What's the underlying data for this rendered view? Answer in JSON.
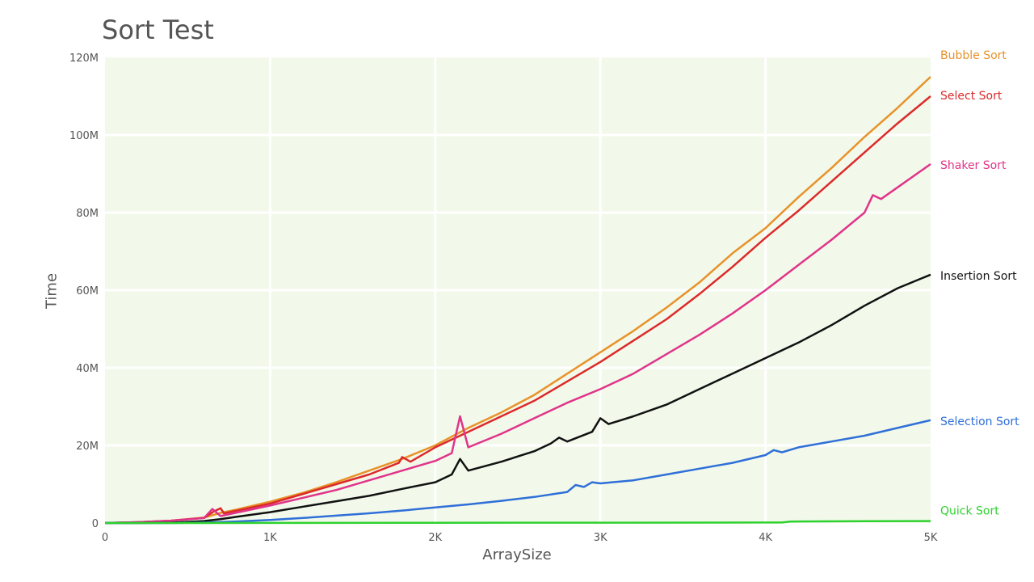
{
  "chart_data": {
    "type": "line",
    "title": "Sort Test",
    "xlabel": "ArraySize",
    "ylabel": "Time",
    "xlim": [
      0,
      5000
    ],
    "ylim": [
      0,
      120000000
    ],
    "xticks": [
      0,
      1000,
      2000,
      3000,
      4000,
      5000
    ],
    "xtick_labels": [
      "0",
      "1K",
      "2K",
      "3K",
      "4K",
      "5K"
    ],
    "yticks": [
      0,
      20000000,
      40000000,
      60000000,
      80000000,
      100000000,
      120000000
    ],
    "ytick_labels": [
      "0",
      "20M",
      "40M",
      "60M",
      "80M",
      "100M",
      "120M"
    ],
    "grid": true,
    "legend": "right",
    "plot_background": "#f2f9ea",
    "series": [
      {
        "name": "Bubble Sort",
        "color": "#e8922a",
        "x": [
          0,
          200,
          400,
          600,
          700,
          800,
          1000,
          1200,
          1400,
          1600,
          1800,
          2000,
          2200,
          2400,
          2600,
          2800,
          3000,
          3200,
          3400,
          3600,
          3800,
          4000,
          4200,
          4400,
          4600,
          4800,
          5000
        ],
        "y": [
          0,
          200000,
          600000,
          1400000,
          2600000,
          3500000,
          5500000,
          7800000,
          10500000,
          13500000,
          16500000,
          20000000,
          24500000,
          28500000,
          33000000,
          38500000,
          44000000,
          49500000,
          55500000,
          62000000,
          69500000,
          76000000,
          84000000,
          91500000,
          99500000,
          107000000,
          115000000
        ]
      },
      {
        "name": "Select Sort",
        "color": "#dc2a2a",
        "x": [
          0,
          200,
          400,
          600,
          660,
          700,
          720,
          800,
          1000,
          1200,
          1400,
          1600,
          1780,
          1800,
          1850,
          2000,
          2200,
          2400,
          2600,
          2800,
          3000,
          3200,
          3400,
          3600,
          3800,
          4000,
          4200,
          4400,
          4600,
          4800,
          5000
        ],
        "y": [
          0,
          200000,
          600000,
          1300000,
          3000000,
          3800000,
          2500000,
          3200000,
          5000000,
          7500000,
          10000000,
          12500000,
          15500000,
          17000000,
          15800000,
          19500000,
          23500000,
          27500000,
          31500000,
          36500000,
          41500000,
          47000000,
          52500000,
          59000000,
          66000000,
          73500000,
          80500000,
          88000000,
          95500000,
          103000000,
          110000000
        ]
      },
      {
        "name": "Shaker Sort",
        "color": "#e0348a",
        "x": [
          0,
          200,
          400,
          600,
          650,
          700,
          1000,
          1200,
          1400,
          1600,
          1800,
          2000,
          2100,
          2150,
          2200,
          2400,
          2600,
          2800,
          3000,
          3200,
          3400,
          3600,
          3800,
          4000,
          4200,
          4400,
          4600,
          4650,
          4700,
          4800,
          5000
        ],
        "y": [
          0,
          200000,
          600000,
          1300000,
          3600000,
          1800000,
          4500000,
          6500000,
          8500000,
          11000000,
          13500000,
          16000000,
          18000000,
          27500000,
          19500000,
          23000000,
          27000000,
          31000000,
          34500000,
          38500000,
          43500000,
          48500000,
          54000000,
          60000000,
          66500000,
          73000000,
          80000000,
          84500000,
          83500000,
          86500000,
          92500000
        ]
      },
      {
        "name": "Insertion Sort",
        "color": "#111111",
        "x": [
          0,
          200,
          400,
          600,
          700,
          800,
          1000,
          1200,
          1400,
          1600,
          1800,
          2000,
          2100,
          2150,
          2200,
          2400,
          2600,
          2700,
          2750,
          2800,
          2950,
          3000,
          3050,
          3200,
          3400,
          3600,
          3800,
          4000,
          4200,
          4400,
          4600,
          4800,
          5000
        ],
        "y": [
          0,
          0,
          100000,
          500000,
          1000000,
          1600000,
          2800000,
          4200000,
          5600000,
          7000000,
          8800000,
          10500000,
          12500000,
          16500000,
          13500000,
          15800000,
          18500000,
          20500000,
          22000000,
          21000000,
          23500000,
          27000000,
          25500000,
          27500000,
          30500000,
          34500000,
          38500000,
          42500000,
          46500000,
          51000000,
          56000000,
          60500000,
          64000000
        ]
      },
      {
        "name": "Selection Sort",
        "color": "#2f6fd8",
        "x": [
          0,
          400,
          600,
          800,
          1000,
          1200,
          1400,
          1600,
          1800,
          2000,
          2200,
          2400,
          2600,
          2800,
          2850,
          2900,
          2950,
          3000,
          3200,
          3400,
          3600,
          3800,
          4000,
          4050,
          4100,
          4200,
          4400,
          4600,
          4800,
          5000
        ],
        "y": [
          0,
          0,
          100000,
          400000,
          800000,
          1300000,
          1900000,
          2500000,
          3200000,
          4000000,
          4800000,
          5700000,
          6700000,
          8000000,
          9800000,
          9300000,
          10500000,
          10200000,
          11000000,
          12500000,
          14000000,
          15500000,
          17500000,
          18800000,
          18200000,
          19500000,
          21000000,
          22500000,
          24500000,
          26500000
        ]
      },
      {
        "name": "Quick Sort",
        "color": "#2ed12e",
        "x": [
          0,
          1000,
          2000,
          3000,
          4000,
          4100,
          4150,
          4200,
          4600,
          5000
        ],
        "y": [
          0,
          30000,
          60000,
          90000,
          120000,
          130000,
          350000,
          400000,
          450000,
          500000
        ]
      }
    ]
  }
}
